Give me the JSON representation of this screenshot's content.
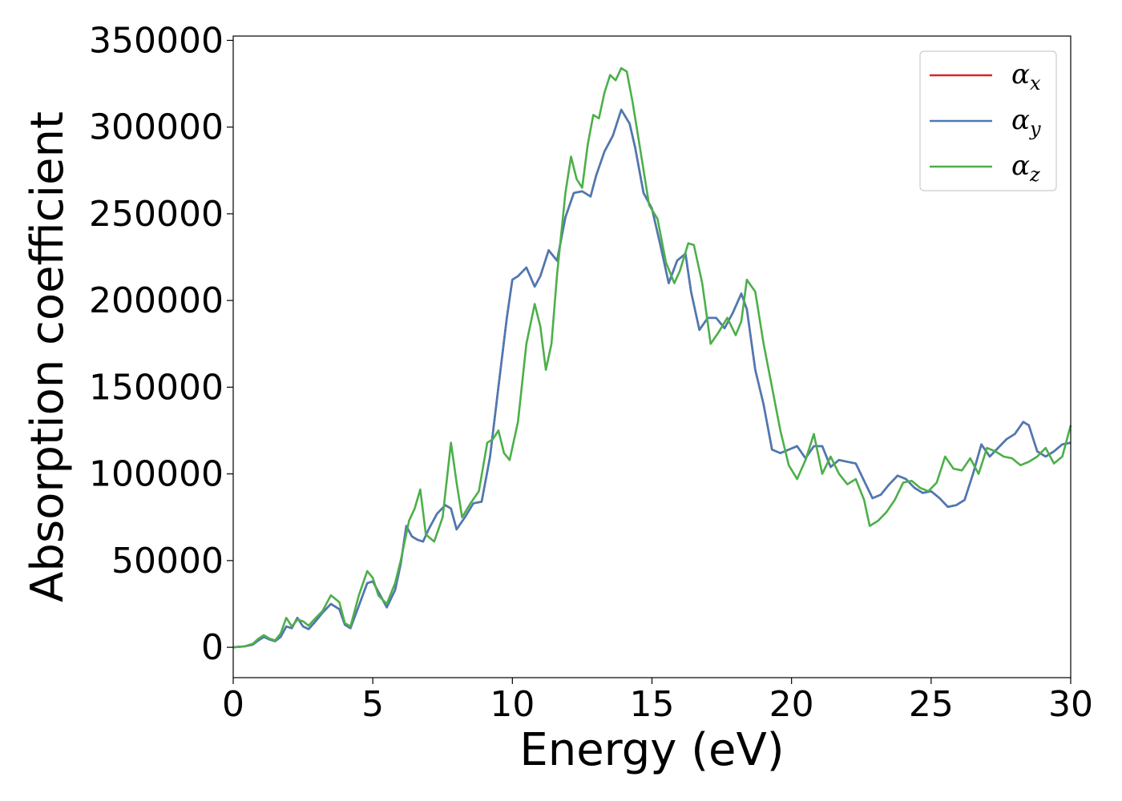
{
  "chart_data": {
    "type": "line",
    "title": "",
    "xlabel": "Energy (eV)",
    "ylabel": "Absorption coefficient",
    "xlim": [
      0,
      30
    ],
    "ylim": [
      -17500,
      352500
    ],
    "xticks": [
      0,
      5,
      10,
      15,
      20,
      25,
      30
    ],
    "yticks": [
      0,
      50000,
      100000,
      150000,
      200000,
      250000,
      300000,
      350000
    ],
    "xtick_labels": [
      "0",
      "5",
      "10",
      "15",
      "20",
      "25",
      "30"
    ],
    "ytick_labels": [
      "0",
      "50000",
      "100000",
      "150000",
      "200000",
      "250000",
      "300000",
      "350000"
    ],
    "grid": false,
    "legend_position": "top-right",
    "series": [
      {
        "name": "α_x",
        "legend_symbol": "α",
        "legend_subscript": "x",
        "color": "#d62728",
        "x": [
          0,
          0.4,
          0.7,
          0.9,
          1.1,
          1.3,
          1.5,
          1.7,
          1.9,
          2.1,
          2.3,
          2.5,
          2.7,
          2.9,
          3.2,
          3.5,
          3.8,
          4.0,
          4.2,
          4.5,
          4.8,
          5.0,
          5.2,
          5.5,
          5.8,
          6.0,
          6.2,
          6.4,
          6.6,
          6.8,
          7.0,
          7.3,
          7.6,
          7.8,
          8.0,
          8.3,
          8.6,
          8.9,
          9.2,
          9.5,
          9.8,
          10.0,
          10.2,
          10.5,
          10.8,
          11.0,
          11.3,
          11.6,
          11.9,
          12.2,
          12.5,
          12.8,
          13.0,
          13.3,
          13.6,
          13.9,
          14.2,
          14.4,
          14.7,
          15.0,
          15.3,
          15.6,
          15.9,
          16.2,
          16.4,
          16.7,
          17.0,
          17.3,
          17.6,
          17.9,
          18.2,
          18.4,
          18.7,
          19.0,
          19.3,
          19.6,
          19.9,
          20.2,
          20.5,
          20.8,
          21.1,
          21.4,
          21.7,
          22.0,
          22.3,
          22.6,
          22.9,
          23.2,
          23.5,
          23.8,
          24.1,
          24.4,
          24.7,
          25.0,
          25.3,
          25.6,
          25.9,
          26.2,
          26.5,
          26.8,
          27.1,
          27.4,
          27.7,
          28.0,
          28.3,
          28.5,
          28.8,
          29.1,
          29.4,
          29.7,
          30.0
        ],
        "y": [
          0,
          500,
          1500,
          4000,
          6000,
          4500,
          3500,
          6000,
          12000,
          11000,
          17000,
          12000,
          10500,
          14000,
          20000,
          25000,
          22000,
          13000,
          11000,
          24000,
          37000,
          38000,
          32000,
          23000,
          33000,
          48000,
          70000,
          64000,
          62000,
          61000,
          68000,
          77000,
          82000,
          80000,
          68000,
          75000,
          83000,
          84000,
          110000,
          150000,
          190000,
          212000,
          214000,
          219000,
          208000,
          214000,
          229000,
          223000,
          248000,
          262000,
          263000,
          260000,
          272000,
          286000,
          295000,
          310000,
          302000,
          288000,
          262000,
          253000,
          232000,
          210000,
          223000,
          227000,
          205000,
          183000,
          190000,
          190000,
          184000,
          193000,
          204000,
          195000,
          160000,
          140000,
          114000,
          112000,
          114000,
          116000,
          109000,
          116000,
          116000,
          104000,
          108000,
          107000,
          106000,
          96000,
          86000,
          88000,
          94000,
          99000,
          97000,
          92000,
          89000,
          90000,
          86000,
          81000,
          82000,
          85000,
          100000,
          117000,
          110000,
          115000,
          120000,
          123000,
          130000,
          128000,
          113000,
          110000,
          113000,
          117000,
          118000
        ]
      },
      {
        "name": "α_y",
        "legend_symbol": "α",
        "legend_subscript": "y",
        "color": "#4a7ab5",
        "x": [
          0,
          0.4,
          0.7,
          0.9,
          1.1,
          1.3,
          1.5,
          1.7,
          1.9,
          2.1,
          2.3,
          2.5,
          2.7,
          2.9,
          3.2,
          3.5,
          3.8,
          4.0,
          4.2,
          4.5,
          4.8,
          5.0,
          5.2,
          5.5,
          5.8,
          6.0,
          6.2,
          6.4,
          6.6,
          6.8,
          7.0,
          7.3,
          7.6,
          7.8,
          8.0,
          8.3,
          8.6,
          8.9,
          9.2,
          9.5,
          9.8,
          10.0,
          10.2,
          10.5,
          10.8,
          11.0,
          11.3,
          11.6,
          11.9,
          12.2,
          12.5,
          12.8,
          13.0,
          13.3,
          13.6,
          13.9,
          14.2,
          14.4,
          14.7,
          15.0,
          15.3,
          15.6,
          15.9,
          16.2,
          16.4,
          16.7,
          17.0,
          17.3,
          17.6,
          17.9,
          18.2,
          18.4,
          18.7,
          19.0,
          19.3,
          19.6,
          19.9,
          20.2,
          20.5,
          20.8,
          21.1,
          21.4,
          21.7,
          22.0,
          22.3,
          22.6,
          22.9,
          23.2,
          23.5,
          23.8,
          24.1,
          24.4,
          24.7,
          25.0,
          25.3,
          25.6,
          25.9,
          26.2,
          26.5,
          26.8,
          27.1,
          27.4,
          27.7,
          28.0,
          28.3,
          28.5,
          28.8,
          29.1,
          29.4,
          29.7,
          30.0
        ],
        "y": [
          0,
          500,
          1500,
          4000,
          6000,
          4500,
          3500,
          6000,
          12000,
          11000,
          17000,
          12000,
          10500,
          14000,
          20000,
          25000,
          22000,
          13000,
          11000,
          24000,
          37000,
          38000,
          32000,
          23000,
          33000,
          48000,
          70000,
          64000,
          62000,
          61000,
          68000,
          77000,
          82000,
          80000,
          68000,
          75000,
          83000,
          84000,
          110000,
          150000,
          190000,
          212000,
          214000,
          219000,
          208000,
          214000,
          229000,
          223000,
          248000,
          262000,
          263000,
          260000,
          272000,
          286000,
          295000,
          310000,
          302000,
          288000,
          262000,
          253000,
          232000,
          210000,
          223000,
          227000,
          205000,
          183000,
          190000,
          190000,
          184000,
          193000,
          204000,
          195000,
          160000,
          140000,
          114000,
          112000,
          114000,
          116000,
          109000,
          116000,
          116000,
          104000,
          108000,
          107000,
          106000,
          96000,
          86000,
          88000,
          94000,
          99000,
          97000,
          92000,
          89000,
          90000,
          86000,
          81000,
          82000,
          85000,
          100000,
          117000,
          110000,
          115000,
          120000,
          123000,
          130000,
          128000,
          113000,
          110000,
          113000,
          117000,
          118000
        ]
      },
      {
        "name": "α_z",
        "legend_symbol": "α",
        "legend_subscript": "z",
        "color": "#4daf4a",
        "x": [
          0,
          0.4,
          0.7,
          0.9,
          1.1,
          1.3,
          1.5,
          1.7,
          1.9,
          2.1,
          2.3,
          2.5,
          2.7,
          2.9,
          3.2,
          3.5,
          3.8,
          4.0,
          4.2,
          4.5,
          4.8,
          5.0,
          5.2,
          5.5,
          5.8,
          6.0,
          6.3,
          6.5,
          6.7,
          6.9,
          7.2,
          7.5,
          7.8,
          8.0,
          8.2,
          8.5,
          8.8,
          9.1,
          9.3,
          9.5,
          9.7,
          9.9,
          10.2,
          10.5,
          10.8,
          11.0,
          11.2,
          11.4,
          11.6,
          11.9,
          12.1,
          12.3,
          12.5,
          12.7,
          12.9,
          13.1,
          13.3,
          13.5,
          13.7,
          13.9,
          14.1,
          14.3,
          14.6,
          14.9,
          15.2,
          15.5,
          15.8,
          16.0,
          16.3,
          16.5,
          16.8,
          17.1,
          17.4,
          17.7,
          18.0,
          18.2,
          18.4,
          18.7,
          19.0,
          19.3,
          19.6,
          19.9,
          20.2,
          20.5,
          20.8,
          21.1,
          21.4,
          21.7,
          22.0,
          22.3,
          22.6,
          22.8,
          23.1,
          23.4,
          23.7,
          24.0,
          24.3,
          24.6,
          24.9,
          25.2,
          25.5,
          25.8,
          26.1,
          26.4,
          26.7,
          27.0,
          27.3,
          27.6,
          27.9,
          28.2,
          28.5,
          28.8,
          29.1,
          29.4,
          29.7,
          30.0
        ],
        "y": [
          0,
          500,
          2000,
          5000,
          7000,
          5000,
          4000,
          8000,
          17000,
          12000,
          16000,
          15000,
          12500,
          16000,
          21000,
          30000,
          26000,
          14000,
          12000,
          30000,
          44000,
          40000,
          30000,
          25000,
          37000,
          50000,
          73000,
          80000,
          91000,
          65000,
          61000,
          75000,
          118000,
          95000,
          75000,
          83000,
          90000,
          118000,
          120000,
          125000,
          112000,
          108000,
          130000,
          175000,
          198000,
          185000,
          160000,
          175000,
          215000,
          262000,
          283000,
          270000,
          265000,
          290000,
          307000,
          305000,
          320000,
          330000,
          327000,
          334000,
          332000,
          315000,
          285000,
          255000,
          247000,
          222000,
          210000,
          217000,
          233000,
          232000,
          210000,
          175000,
          182000,
          190000,
          180000,
          188000,
          212000,
          205000,
          175000,
          150000,
          125000,
          105000,
          97000,
          108000,
          123000,
          100000,
          110000,
          100000,
          94000,
          97000,
          85000,
          70000,
          73000,
          78000,
          85000,
          95000,
          96000,
          92000,
          90000,
          95000,
          110000,
          103000,
          102000,
          109000,
          100000,
          115000,
          113000,
          110000,
          109000,
          105000,
          107000,
          110000,
          115000,
          106000,
          110000,
          128000
        ]
      }
    ]
  }
}
